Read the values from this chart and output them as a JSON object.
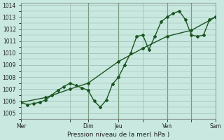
{
  "xlabel": "Pression niveau de la mer( hPa )",
  "bg_color": "#c8e8e0",
  "plot_bg_color": "#c8e8e0",
  "grid_color": "#99bbaa",
  "line_color": "#1a5520",
  "xlim": [
    0,
    96
  ],
  "ylim": [
    1004.5,
    1014.2
  ],
  "ytick_positions": [
    1005,
    1006,
    1007,
    1008,
    1009,
    1010,
    1011,
    1012,
    1013,
    1014
  ],
  "xtick_labels": [
    "Mer",
    "",
    "Dim",
    "Jeu",
    "",
    "Ven",
    "",
    "Sam"
  ],
  "xtick_positions": [
    0,
    24,
    33,
    48,
    60,
    72,
    84,
    96
  ],
  "vlines": [
    33,
    48,
    72,
    84
  ],
  "series1_x": [
    0,
    3,
    6,
    9,
    12,
    15,
    18,
    21,
    24,
    27,
    30,
    33,
    36,
    39,
    42,
    45,
    48,
    51,
    54,
    57,
    60,
    63,
    66,
    69,
    72,
    75,
    78,
    81,
    84,
    87,
    90,
    93,
    96
  ],
  "series1_y": [
    1005.9,
    1005.7,
    1005.8,
    1005.9,
    1006.1,
    1006.5,
    1006.9,
    1007.2,
    1007.5,
    1007.3,
    1007.1,
    1006.9,
    1006.0,
    1005.5,
    1006.1,
    1007.4,
    1008.0,
    1009.0,
    1010.0,
    1011.4,
    1011.5,
    1010.3,
    1011.4,
    1012.6,
    1013.0,
    1013.3,
    1013.5,
    1012.8,
    1011.5,
    1011.4,
    1011.5,
    1012.8,
    1013.0
  ],
  "series2_x": [
    0,
    12,
    24,
    33,
    48,
    60,
    72,
    84,
    96
  ],
  "series2_y": [
    1005.9,
    1006.3,
    1007.0,
    1007.5,
    1009.3,
    1010.4,
    1011.4,
    1011.9,
    1013.0
  ],
  "marker": "D",
  "marker_size": 2.0,
  "line_width": 1.0
}
